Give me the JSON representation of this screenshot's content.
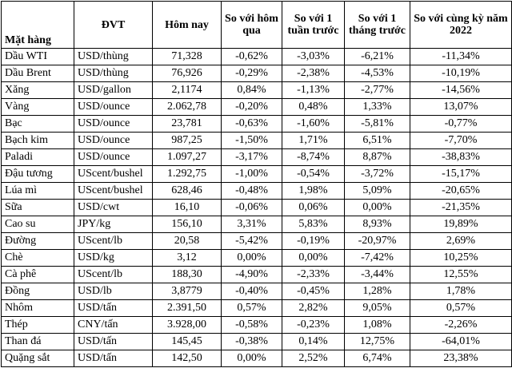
{
  "table": {
    "header": [
      "Mặt hàng",
      "ĐVT",
      "Hôm nay",
      "So với hôm qua",
      "So với 1 tuần trước",
      "So với 1 tháng trước",
      "So với cùng kỳ năm 2022"
    ],
    "rows": [
      [
        "Dầu WTI",
        "USD/thùng",
        "71,328",
        "-0,62%",
        "-3,03%",
        "-6,21%",
        "-11,34%"
      ],
      [
        "Dầu Brent",
        "USD/thùng",
        "76,926",
        "-0,29%",
        "-2,38%",
        "-4,53%",
        "-10,19%"
      ],
      [
        "Xăng",
        "USD/gallon",
        "2,1174",
        "0,84%",
        "-1,13%",
        "-2,77%",
        "-14,56%"
      ],
      [
        "Vàng",
        "USD/ounce",
        "2.062,78",
        "-0,20%",
        "0,48%",
        "1,33%",
        "13,07%"
      ],
      [
        "Bạc",
        "USD/ounce",
        "23,781",
        "-0,63%",
        "-1,60%",
        "-5,81%",
        "-0,77%"
      ],
      [
        "Bạch kim",
        "USD/ounce",
        "987,25",
        "-1,50%",
        "1,71%",
        "6,51%",
        "-7,70%"
      ],
      [
        "Paladi",
        "USD/ounce",
        "1.097,27",
        "-3,17%",
        "-8,74%",
        "8,87%",
        "-38,83%"
      ],
      [
        "Đậu tương",
        "UScent/bushel",
        "1.292,75",
        "-1,00%",
        "-0,54%",
        "-3,72%",
        "-15,17%"
      ],
      [
        "Lúa mì",
        "UScent/bushel",
        "628,46",
        "-0,48%",
        "1,98%",
        "5,09%",
        "-20,65%"
      ],
      [
        "Sữa",
        "USD/cwt",
        "16,10",
        "-0,06%",
        "0,06%",
        "0,00%",
        "-21,35%"
      ],
      [
        "Cao su",
        "JPY/kg",
        "156,10",
        "3,31%",
        "5,83%",
        "8,93%",
        "19,89%"
      ],
      [
        "Đường",
        "UScent/lb",
        "20,58",
        "-5,42%",
        "-0,19%",
        "-20,97%",
        "2,69%"
      ],
      [
        "Chè",
        "USD/kg",
        "3,12",
        "0,00%",
        "0,00%",
        "-7,42%",
        "10,25%"
      ],
      [
        "Cà phê",
        "UScent/lb",
        "188,30",
        "-4,90%",
        "-2,33%",
        "-3,44%",
        "12,55%"
      ],
      [
        "Đồng",
        "USD/lb",
        "3,8779",
        "-0,40%",
        "-0,45%",
        "1,28%",
        "1,78%"
      ],
      [
        "Nhôm",
        "USD/tấn",
        "2.391,50",
        "0,57%",
        "2,82%",
        "9,05%",
        "0,57%"
      ],
      [
        "Thép",
        "CNY/tấn",
        "3.928,00",
        "-0,58%",
        "-0,23%",
        "1,08%",
        "-2,26%"
      ],
      [
        "Than đá",
        "USD/tấn",
        "145,45",
        "-0,38%",
        "0,14%",
        "12,75%",
        "-64,01%"
      ],
      [
        "Quặng sắt",
        "USD/tấn",
        "142,50",
        "0,00%",
        "2,52%",
        "6,74%",
        "23,38%"
      ]
    ]
  }
}
